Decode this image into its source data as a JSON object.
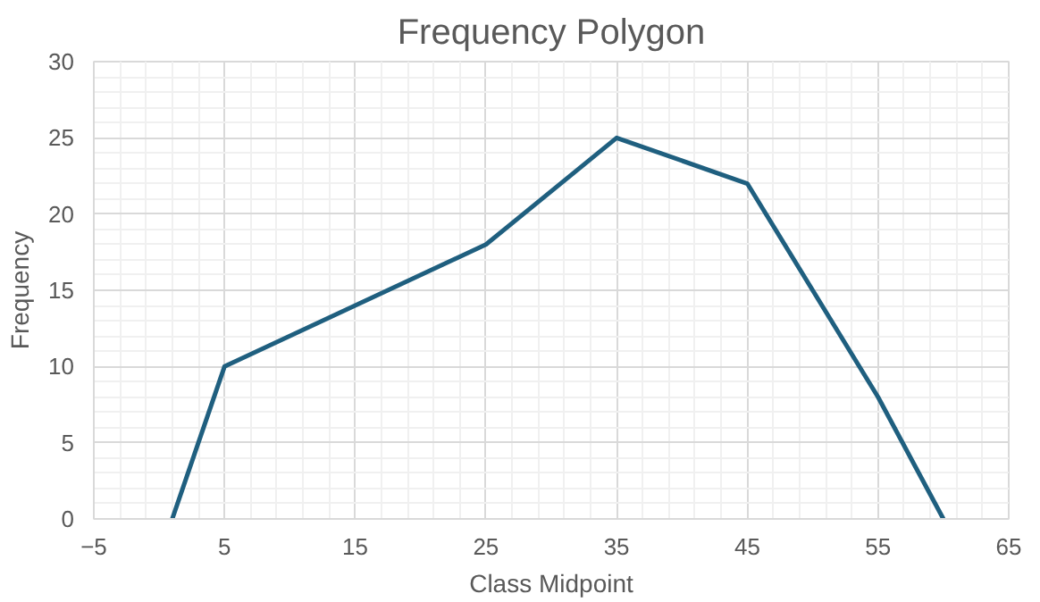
{
  "chart_data": {
    "type": "line",
    "title": "Frequency Polygon",
    "xlabel": "Class Midpoint",
    "ylabel": "Frequency",
    "x": [
      1,
      5,
      15,
      25,
      35,
      45,
      55,
      60
    ],
    "series": [
      {
        "color": "#1f5f7f",
        "values": [
          0,
          10,
          14,
          18,
          25,
          22,
          8,
          0
        ]
      }
    ],
    "xlim": [
      -5,
      65
    ],
    "xticks": [
      -5,
      5,
      15,
      25,
      35,
      45,
      55,
      65
    ],
    "ylim": [
      0,
      30
    ],
    "yticks": [
      0,
      5,
      10,
      15,
      20,
      25,
      30
    ],
    "grid": true,
    "marker": "none",
    "line_style": "solid"
  }
}
